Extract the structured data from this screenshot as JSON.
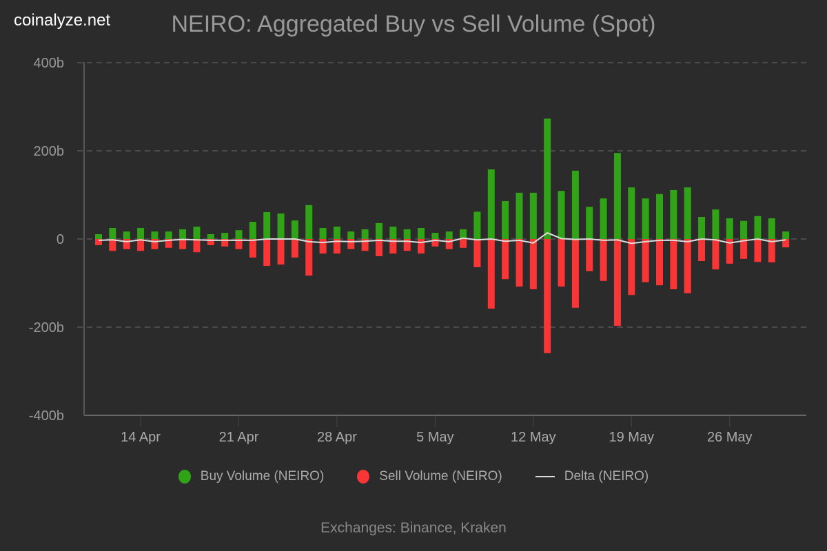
{
  "brand": "coinalyze.net",
  "footer": "Exchanges: Binance, Kraken",
  "legend": [
    {
      "label": "Buy Volume (NEIRO)",
      "color": "#31a317",
      "symbol": "dot"
    },
    {
      "label": "Sell Volume (NEIRO)",
      "color": "#f93535",
      "symbol": "dot"
    },
    {
      "label": "Delta (NEIRO)",
      "color": "#dddddd",
      "symbol": "line"
    }
  ],
  "chart_data": {
    "type": "bar",
    "title": "NEIRO: Aggregated Buy vs Sell Volume (Spot)",
    "xlabel": "",
    "ylabel": "",
    "ylim": [
      -400,
      400
    ],
    "y_unit": "b",
    "yticks": [
      {
        "value": 400,
        "label": "400b"
      },
      {
        "value": 200,
        "label": "200b"
      },
      {
        "value": 0,
        "label": "0"
      },
      {
        "value": -200,
        "label": "-200b"
      },
      {
        "value": -400,
        "label": "-400b"
      }
    ],
    "xticks": [
      {
        "day": 3,
        "label": "14 Apr"
      },
      {
        "day": 10,
        "label": "21 Apr"
      },
      {
        "day": 17,
        "label": "28 Apr"
      },
      {
        "day": 24,
        "label": "5 May"
      },
      {
        "day": 31,
        "label": "12 May"
      },
      {
        "day": 38,
        "label": "19 May"
      },
      {
        "day": 45,
        "label": "26 May"
      }
    ],
    "grid": true,
    "legend_position": "bottom",
    "categories": [
      "11 Apr",
      "12 Apr",
      "13 Apr",
      "14 Apr",
      "15 Apr",
      "16 Apr",
      "17 Apr",
      "18 Apr",
      "19 Apr",
      "20 Apr",
      "21 Apr",
      "22 Apr",
      "23 Apr",
      "24 Apr",
      "25 Apr",
      "26 Apr",
      "27 Apr",
      "28 Apr",
      "29 Apr",
      "30 Apr",
      "1 May",
      "2 May",
      "3 May",
      "4 May",
      "5 May",
      "6 May",
      "7 May",
      "8 May",
      "9 May",
      "10 May",
      "11 May",
      "12 May",
      "13 May",
      "14 May",
      "15 May",
      "16 May",
      "17 May",
      "18 May",
      "19 May",
      "20 May",
      "21 May",
      "22 May",
      "23 May",
      "24 May",
      "25 May",
      "26 May",
      "27 May",
      "28 May",
      "29 May",
      "30 May"
    ],
    "series": [
      {
        "name": "Buy Volume (NEIRO)",
        "color": "#31a317",
        "values": [
          11,
          25,
          17,
          25,
          17,
          17,
          22,
          28,
          11,
          14,
          20,
          39,
          61,
          58,
          42,
          77,
          25,
          28,
          17,
          22,
          36,
          28,
          22,
          25,
          14,
          17,
          22,
          62,
          158,
          86,
          105,
          105,
          273,
          109,
          155,
          73,
          92,
          195,
          117,
          92,
          102,
          111,
          117,
          50,
          67,
          47,
          41,
          52,
          47,
          17
        ]
      },
      {
        "name": "Sell Volume (NEIRO)",
        "color": "#f93535",
        "values": [
          -14,
          -27,
          -23,
          -27,
          -23,
          -20,
          -23,
          -30,
          -14,
          -17,
          -23,
          -42,
          -61,
          -58,
          -42,
          -83,
          -33,
          -33,
          -23,
          -27,
          -39,
          -33,
          -27,
          -33,
          -17,
          -23,
          -20,
          -64,
          -158,
          -91,
          -108,
          -114,
          -259,
          -108,
          -156,
          -73,
          -95,
          -197,
          -127,
          -98,
          -105,
          -114,
          -123,
          -50,
          -69,
          -56,
          -45,
          -52,
          -53,
          -19
        ]
      },
      {
        "name": "Delta (NEIRO)",
        "color": "#dddddd",
        "type": "line",
        "values": [
          -3,
          -2,
          -6,
          -2,
          -6,
          -3,
          -1,
          -2,
          -3,
          -3,
          -3,
          -3,
          0,
          0,
          0,
          -6,
          -8,
          -5,
          -6,
          -5,
          -3,
          -5,
          -5,
          -8,
          -3,
          -6,
          2,
          -2,
          0,
          -5,
          -3,
          -9,
          14,
          1,
          -1,
          0,
          -3,
          -2,
          -10,
          -6,
          -3,
          -3,
          -6,
          0,
          -2,
          -9,
          -4,
          0,
          -6,
          -2
        ]
      }
    ]
  }
}
